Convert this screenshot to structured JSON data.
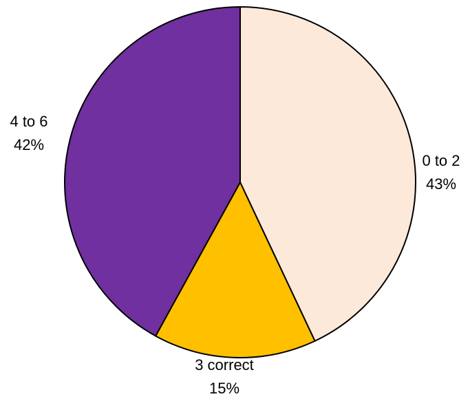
{
  "chart_data": {
    "type": "pie",
    "categories": [
      "0 to 2",
      "3 correct",
      "4 to 6"
    ],
    "values": [
      43,
      15,
      42
    ],
    "value_labels": [
      "43%",
      "15%",
      "42%"
    ],
    "colors": [
      "#fde9d9",
      "#ffc000",
      "#7030a0"
    ]
  }
}
